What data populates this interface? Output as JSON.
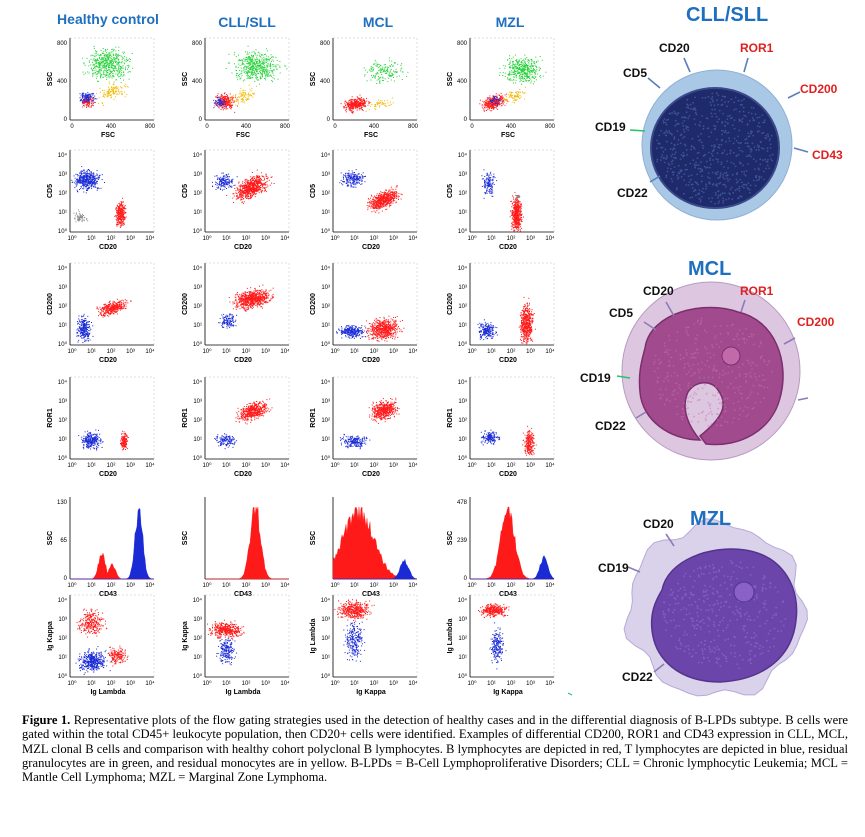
{
  "columns": [
    "Healthy control",
    "CLL/SLL",
    "MCL",
    "MZL"
  ],
  "rows": [
    {
      "id": "fsc_ssc",
      "x_label": "FSC",
      "y_label": "SSC",
      "x_ticks": [
        "0",
        "400",
        "800"
      ],
      "y_ticks": [
        "0",
        "400",
        "800"
      ]
    },
    {
      "id": "cd20_cd5",
      "x_label": "CD20",
      "y_label": "CD5",
      "x_ticks": [
        "10⁰",
        "10¹",
        "10²",
        "10³",
        "10⁴"
      ],
      "y_ticks": [
        "10⁰",
        "10¹",
        "10²",
        "10³",
        "10⁴"
      ]
    },
    {
      "id": "cd20_cd200",
      "x_label": "CD20",
      "y_label": "CD200",
      "x_ticks": [
        "10⁰",
        "10¹",
        "10²",
        "10³",
        "10⁴"
      ],
      "y_ticks": [
        "10⁰",
        "10¹",
        "10²",
        "10³",
        "10⁴"
      ]
    },
    {
      "id": "cd20_ror1",
      "x_label": "CD20",
      "y_label": "ROR1",
      "x_ticks": [
        "10⁰",
        "10¹",
        "10²",
        "10³",
        "10⁴"
      ],
      "y_ticks": [
        "10⁰",
        "10¹",
        "10²",
        "10³",
        "10⁴"
      ]
    },
    {
      "id": "cd43_hist",
      "x_label": "CD43",
      "y_label": "SSC",
      "x_ticks": [
        "10⁰",
        "10¹",
        "10²",
        "10³",
        "10⁴"
      ],
      "y_ticks_by_col": [
        [
          "0",
          "65",
          "130"
        ],
        [],
        [],
        [
          "0",
          "239",
          "478"
        ]
      ]
    },
    {
      "id": "kappa_lambda",
      "x_labels": [
        "Ig Lambda",
        "Ig Lambda",
        "Ig Kappa",
        "Ig Kappa"
      ],
      "y_labels": [
        "Ig Kappa",
        "Ig Kappa",
        "Ig Lambda",
        "Ig Lambda"
      ],
      "x_ticks": [
        "10⁰",
        "10¹",
        "10²",
        "10³",
        "10⁴"
      ],
      "y_ticks": [
        "10⁰",
        "10¹",
        "10²",
        "10³",
        "10⁴"
      ]
    }
  ],
  "populations": {
    "b_lymphocytes": "#ff1a1a",
    "t_lymphocytes": "#1a2bd6",
    "granulocytes": "#27d13a",
    "monocytes": "#f2b800",
    "other": "#888888"
  },
  "cells": [
    {
      "title": "CLL/SLL",
      "markers": [
        {
          "text": "CD20",
          "color": "black"
        },
        {
          "text": "ROR1",
          "color": "red"
        },
        {
          "text": "CD5",
          "color": "black"
        },
        {
          "text": "CD200",
          "color": "red"
        },
        {
          "text": "CD19",
          "color": "black"
        },
        {
          "text": "CD43",
          "color": "red"
        },
        {
          "text": "CD22",
          "color": "black"
        }
      ]
    },
    {
      "title": "MCL",
      "markers": [
        {
          "text": "CD20",
          "color": "black"
        },
        {
          "text": "ROR1",
          "color": "red"
        },
        {
          "text": "CD5",
          "color": "black"
        },
        {
          "text": "CD200",
          "color": "red"
        },
        {
          "text": "CD19",
          "color": "black"
        },
        {
          "text": "CD22",
          "color": "black"
        }
      ]
    },
    {
      "title": "MZL",
      "markers": [
        {
          "text": "CD20",
          "color": "black"
        },
        {
          "text": "CD19",
          "color": "black"
        },
        {
          "text": "CD22",
          "color": "black"
        }
      ]
    }
  ],
  "caption": {
    "label": "Figure 1.",
    "text": " Representative plots of the flow gating strategies used in the detection of healthy cases and in the differential diagnosis of B-LPDs subtype. B cells were gated within the total CD45+ leukocyte population, then CD20+ cells were identified. Examples of differential CD200, ROR1 and CD43 expression in CLL, MCL, MZL clonal B cells and comparison with healthy cohort polyclonal B lymphocytes. B lymphocytes are depicted in red, T lymphocytes are depicted in blue, residual granulocytes are in green, and residual monocytes are in yellow. B-LPDs = B-Cell Lymphoproliferative Disorders; CLL = Chronic lymphocytic Leukemia; MCL = Mantle Cell Lymphoma; MZL = Marginal Zone Lymphoma."
  }
}
